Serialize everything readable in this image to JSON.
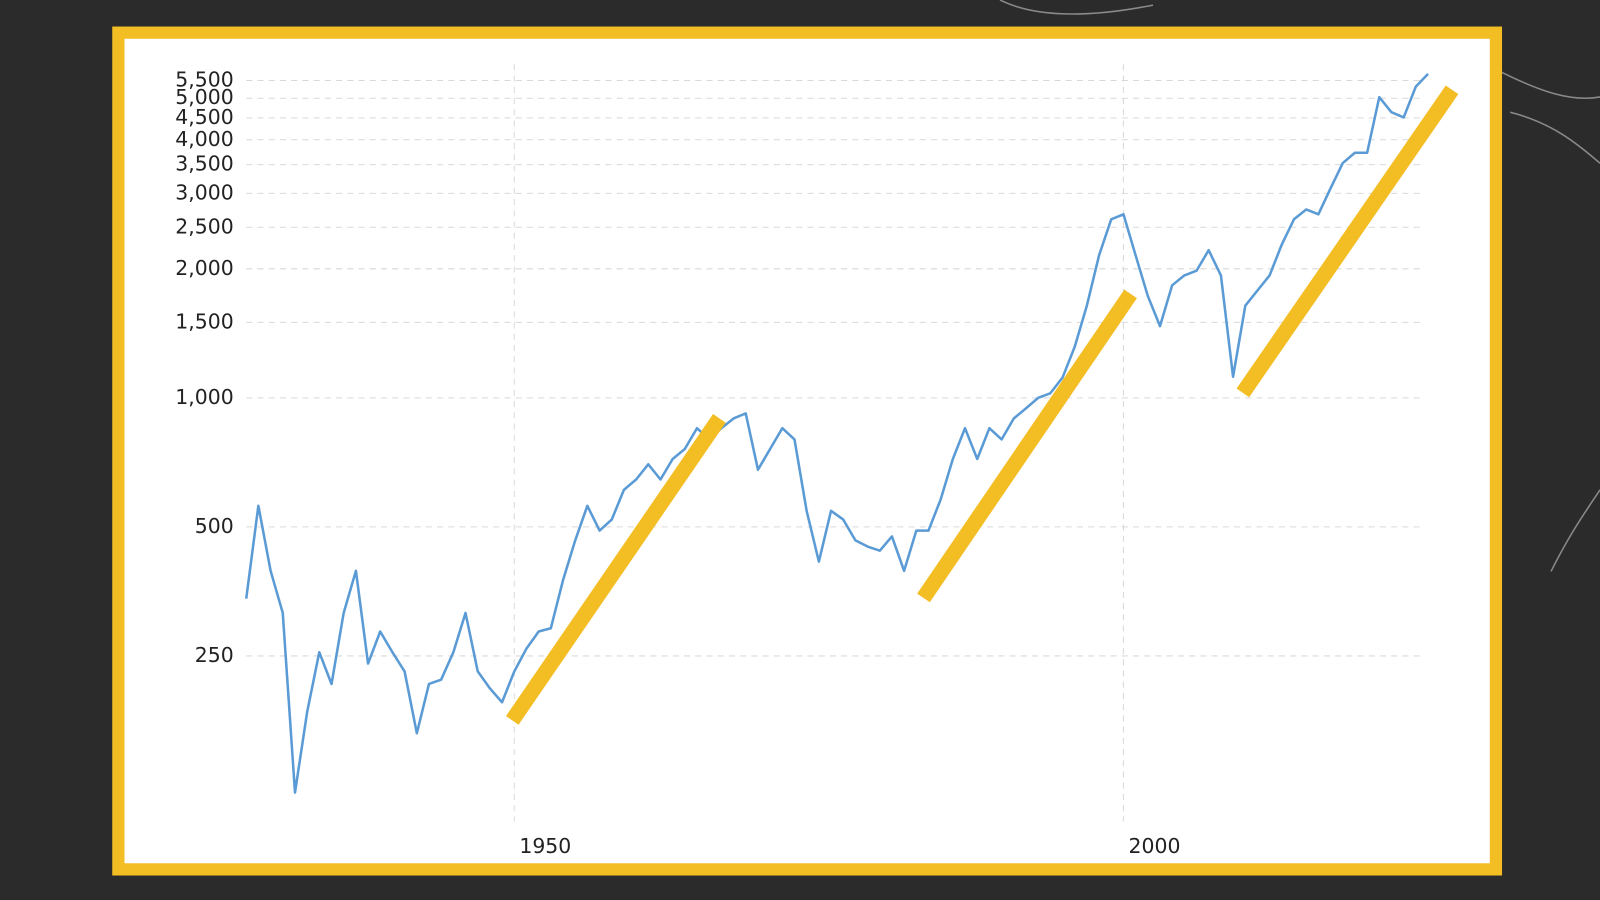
{
  "chart_data": {
    "type": "line",
    "yscale": "log",
    "grid": true,
    "x": [
      1928,
      1929,
      1930,
      1931,
      1932,
      1933,
      1934,
      1935,
      1936,
      1937,
      1938,
      1939,
      1940,
      1941,
      1942,
      1943,
      1944,
      1945,
      1946,
      1947,
      1948,
      1949,
      1950,
      1951,
      1952,
      1953,
      1954,
      1955,
      1956,
      1957,
      1958,
      1959,
      1960,
      1961,
      1962,
      1963,
      1964,
      1965,
      1966,
      1967,
      1968,
      1969,
      1970,
      1971,
      1972,
      1973,
      1974,
      1975,
      1976,
      1977,
      1978,
      1979,
      1980,
      1981,
      1982,
      1983,
      1984,
      1985,
      1986,
      1987,
      1988,
      1989,
      1990,
      1991,
      1992,
      1993,
      1994,
      1995,
      1996,
      1997,
      1998,
      1999,
      2000,
      2001,
      2002,
      2003,
      2004,
      2005,
      2006,
      2007,
      2008,
      2009,
      2010,
      2011,
      2012,
      2013,
      2014,
      2015,
      2016,
      2017,
      2018,
      2019,
      2020,
      2021,
      2022,
      2023,
      2024,
      2025
    ],
    "series": [
      {
        "color": "#5b9bd5",
        "values": [
          340,
          560,
          395,
          315,
          120,
          185,
          255,
          215,
          315,
          395,
          240,
          285,
          255,
          230,
          165,
          215,
          220,
          255,
          315,
          230,
          210,
          195,
          230,
          260,
          285,
          290,
          375,
          465,
          560,
          490,
          520,
          610,
          645,
          700,
          645,
          720,
          760,
          850,
          800,
          850,
          895,
          920,
          680,
          760,
          850,
          800,
          545,
          415,
          545,
          520,
          465,
          450,
          440,
          475,
          395,
          490,
          490,
          580,
          720,
          850,
          720,
          850,
          800,
          895,
          945,
          1000,
          1025,
          1115,
          1315,
          1640,
          2150,
          2610,
          2680,
          2150,
          1730,
          1470,
          1830,
          1930,
          1980,
          2210,
          1930,
          1120,
          1640,
          1780,
          1930,
          2280,
          2610,
          2750,
          2680,
          3080,
          3530,
          3730,
          3730,
          5030,
          4640,
          4510,
          5320,
          5700
        ]
      }
    ],
    "xlim": [
      1928,
      2026
    ],
    "xticks": [
      1950,
      2000
    ],
    "ylim": [
      100,
      6000
    ],
    "yticks": [
      250,
      500,
      {
        "value": 1000,
        "label": "1,000"
      },
      {
        "value": 1500,
        "label": "1,500"
      },
      {
        "value": 2000,
        "label": "2,000"
      },
      {
        "value": 2500,
        "label": "2,500"
      },
      {
        "value": 3000,
        "label": "3,000"
      },
      {
        "value": 3500,
        "label": "3,500"
      },
      {
        "value": 4000,
        "label": "4,000"
      },
      {
        "value": 4500,
        "label": "4,500"
      },
      {
        "value": 5000,
        "label": "5,000"
      },
      {
        "value": 5500,
        "label": "5,500"
      }
    ]
  }
}
